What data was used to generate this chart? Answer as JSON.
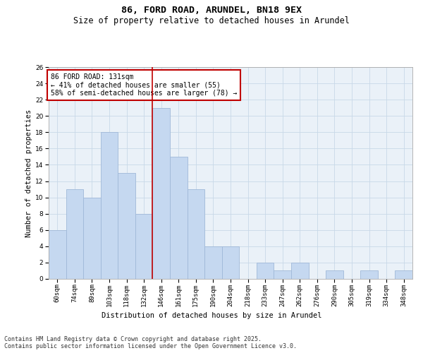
{
  "title": "86, FORD ROAD, ARUNDEL, BN18 9EX",
  "subtitle": "Size of property relative to detached houses in Arundel",
  "xlabel": "Distribution of detached houses by size in Arundel",
  "ylabel": "Number of detached properties",
  "footer_line1": "Contains HM Land Registry data © Crown copyright and database right 2025.",
  "footer_line2": "Contains public sector information licensed under the Open Government Licence v3.0.",
  "bin_labels": [
    "60sqm",
    "74sqm",
    "89sqm",
    "103sqm",
    "118sqm",
    "132sqm",
    "146sqm",
    "161sqm",
    "175sqm",
    "190sqm",
    "204sqm",
    "218sqm",
    "233sqm",
    "247sqm",
    "262sqm",
    "276sqm",
    "290sqm",
    "305sqm",
    "319sqm",
    "334sqm",
    "348sqm"
  ],
  "bar_values": [
    6,
    11,
    10,
    18,
    13,
    8,
    21,
    15,
    11,
    4,
    4,
    0,
    2,
    1,
    2,
    0,
    1,
    0,
    1,
    0,
    1
  ],
  "bar_color": "#c5d8f0",
  "bar_edgecolor": "#a0b8d8",
  "vline_x": 5.5,
  "vline_color": "#c00000",
  "annotation_text": "86 FORD ROAD: 131sqm\n← 41% of detached houses are smaller (55)\n58% of semi-detached houses are larger (78) →",
  "annotation_box_color": "#c00000",
  "ylim": [
    0,
    26
  ],
  "yticks": [
    0,
    2,
    4,
    6,
    8,
    10,
    12,
    14,
    16,
    18,
    20,
    22,
    24,
    26
  ],
  "grid_color": "#c8d8e8",
  "bg_color": "#eaf1f8",
  "title_fontsize": 9.5,
  "subtitle_fontsize": 8.5,
  "label_fontsize": 7.5,
  "tick_fontsize": 6.5,
  "annotation_fontsize": 7,
  "footer_fontsize": 6
}
